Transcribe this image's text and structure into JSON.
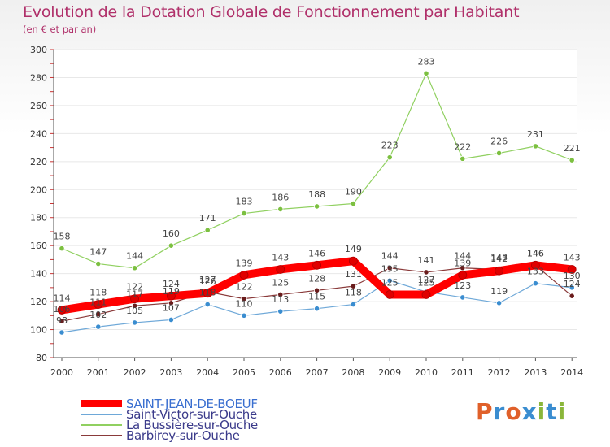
{
  "title": "Evolution de la Dotation Globale de Fonctionnement par Habitant",
  "subtitle": "(en € et par an)",
  "colors": {
    "title": "#b0306a",
    "axis": "#555555",
    "grid": "#e8e8e8",
    "label": "#333333"
  },
  "logo": {
    "text": "Proxiti",
    "colors": [
      "#e0602a",
      "#3a8dd0",
      "#e0602a",
      "#3a8dd0",
      "#8ab63a",
      "#3a8dd0",
      "#8ab63a"
    ]
  },
  "chart_data": {
    "type": "line",
    "title": "Evolution de la Dotation Globale de Fonctionnement par Habitant",
    "subtitle": "(en € et par an)",
    "x": [
      "2000",
      "2001",
      "2002",
      "2003",
      "2004",
      "2005",
      "2006",
      "2007",
      "2008",
      "2009",
      "2010",
      "2011",
      "2012",
      "2013",
      "2014"
    ],
    "ylim": [
      80,
      300
    ],
    "yticks": [
      80,
      100,
      120,
      140,
      160,
      180,
      200,
      220,
      240,
      260,
      280,
      300
    ],
    "grid": true,
    "legend_position": "bottom-left",
    "series": [
      {
        "name": "La Bussière-sur-Ouche",
        "color": "#90d060",
        "marker": "#7cc040",
        "width": 1.2,
        "values": [
          158,
          147,
          144,
          160,
          171,
          183,
          186,
          188,
          190,
          223,
          283,
          222,
          226,
          231,
          221
        ],
        "labels": [
          "158",
          "147",
          "144",
          "160",
          "171",
          "183",
          "186",
          "188",
          "190",
          "223",
          "283",
          "222",
          "226",
          "231",
          "221"
        ]
      },
      {
        "name": "Saint-Victor-sur-Ouche",
        "color": "#6ea8d8",
        "marker": "#3a8dd0",
        "width": 1.2,
        "values": [
          98,
          102,
          105,
          107,
          118,
          110,
          113,
          115,
          118,
          135,
          127,
          123,
          119,
          133,
          130
        ],
        "labels": [
          "98",
          "102",
          "105",
          "107",
          "118",
          "110",
          "113",
          "115",
          "118",
          "135",
          "127",
          "123",
          "119",
          "133",
          "130"
        ]
      },
      {
        "name": "Barbirey-sur-Ouche",
        "color": "#8a3a3a",
        "marker": "#6a1c1c",
        "width": 1.2,
        "values": [
          106,
          111,
          117,
          119,
          127,
          122,
          125,
          128,
          131,
          144,
          141,
          144,
          143,
          146,
          124
        ],
        "labels": [
          "106",
          "111",
          "117",
          "119",
          "127",
          "122",
          "125",
          "128",
          "131",
          "144",
          "141",
          "144",
          "143",
          "146",
          "124"
        ]
      },
      {
        "name": "SAINT-JEAN-DE-BOEUF",
        "color": "#ff0000",
        "marker": "#e00000",
        "width": 10,
        "values": [
          114,
          118,
          122,
          124,
          126,
          139,
          143,
          146,
          149,
          125,
          125,
          139,
          142,
          146,
          143
        ],
        "labels": [
          "114",
          "118",
          "122",
          "124",
          "126",
          "139",
          "143",
          "146",
          "149",
          "125",
          "125",
          "139",
          "142",
          "146",
          "143"
        ]
      }
    ],
    "legend": [
      {
        "name": "SAINT-JEAN-DE-BOEUF",
        "color": "#ff0000",
        "text_color": "#3a6fd0"
      },
      {
        "name": "Saint-Victor-sur-Ouche",
        "color": "#6ea8d8",
        "text_color": "#3a3a8a"
      },
      {
        "name": "La Bussière-sur-Ouche",
        "color": "#90d060",
        "text_color": "#3a3a8a"
      },
      {
        "name": "Barbirey-sur-Ouche",
        "color": "#8a3a3a",
        "text_color": "#3a3a8a"
      }
    ]
  }
}
